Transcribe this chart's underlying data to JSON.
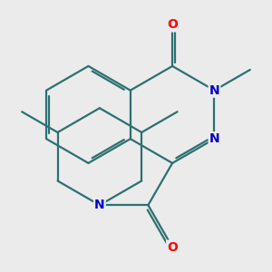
{
  "background_color": "#ebebeb",
  "bond_color": "#2d7070",
  "bond_width": 1.6,
  "dbo": 0.06,
  "atom_colors": {
    "O": "#ff0000",
    "N": "#0000cc"
  },
  "font_size": 10,
  "font_size_small": 9
}
